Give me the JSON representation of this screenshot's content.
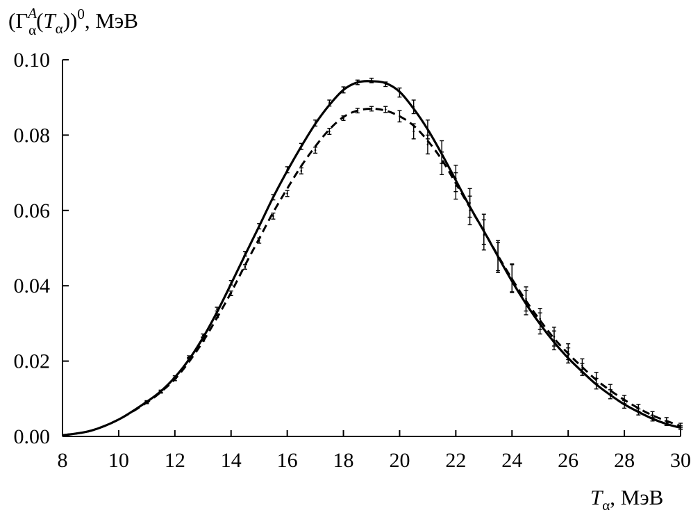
{
  "chart_data": {
    "type": "line",
    "ylabel": {
      "prefix": "(Γ",
      "sup": "A",
      "sub": "α",
      "mid": "(",
      "var": "T",
      "var_sub": "α",
      "suffix": "))",
      "power": "0",
      "unit": ", МэВ"
    },
    "xlabel": {
      "var": "T",
      "var_sub": "α",
      "unit": ", МэВ"
    },
    "xlim": [
      8,
      30
    ],
    "ylim": [
      0,
      0.1
    ],
    "xticks": [
      8,
      10,
      12,
      14,
      16,
      18,
      20,
      22,
      24,
      26,
      28,
      30
    ],
    "xtick_labels": [
      "8",
      "10",
      "12",
      "14",
      "16",
      "18",
      "20",
      "22",
      "24",
      "26",
      "28",
      "30"
    ],
    "yticks": [
      0,
      0.02,
      0.04,
      0.06,
      0.08,
      0.1
    ],
    "ytick_labels": [
      "0.00",
      "0.02",
      "0.04",
      "0.06",
      "0.08",
      "0.10"
    ],
    "grid": false,
    "series": [
      {
        "style": "solid",
        "x": [
          8.0,
          9.0,
          10.0,
          11.0,
          11.5,
          12.0,
          12.5,
          13.0,
          13.5,
          14.0,
          14.5,
          15.0,
          15.5,
          16.0,
          16.5,
          17.0,
          17.5,
          18.0,
          18.5,
          19.0,
          19.5,
          20.0,
          20.5,
          21.0,
          21.5,
          22.0,
          22.5,
          23.0,
          23.5,
          24.0,
          24.5,
          25.0,
          25.5,
          26.0,
          26.5,
          27.0,
          27.5,
          28.0,
          28.5,
          29.0,
          29.5,
          30.0
        ],
        "y": [
          0.0003,
          0.0015,
          0.0045,
          0.0092,
          0.012,
          0.0157,
          0.0204,
          0.0262,
          0.033,
          0.0405,
          0.0482,
          0.0558,
          0.0635,
          0.0705,
          0.077,
          0.083,
          0.088,
          0.092,
          0.094,
          0.0943,
          0.0938,
          0.0915,
          0.087,
          0.0815,
          0.075,
          0.068,
          0.061,
          0.0545,
          0.0478,
          0.0412,
          0.0352,
          0.0298,
          0.025,
          0.0208,
          0.0172,
          0.0138,
          0.011,
          0.0085,
          0.0065,
          0.0047,
          0.0033,
          0.0023
        ],
        "points": {
          "x": [
            11.0,
            11.5,
            12.0,
            12.5,
            13.0,
            13.5,
            14.0,
            14.5,
            15.0,
            15.5,
            16.0,
            16.5,
            17.0,
            17.5,
            18.0,
            18.5,
            19.0,
            19.5,
            20.0,
            20.5,
            21.0,
            21.5,
            22.0,
            22.5,
            23.0,
            23.5,
            24.0,
            24.5,
            25.0,
            25.5,
            26.0,
            26.5,
            27.0,
            27.5,
            28.0,
            28.5,
            29.0,
            29.5,
            30.0
          ],
          "y": [
            0.0092,
            0.012,
            0.0157,
            0.021,
            0.0268,
            0.0338,
            0.0408,
            0.0485,
            0.0558,
            0.0635,
            0.0708,
            0.077,
            0.0832,
            0.0885,
            0.092,
            0.094,
            0.0945,
            0.0935,
            0.0913,
            0.0875,
            0.0815,
            0.0755,
            0.0685,
            0.062,
            0.055,
            0.048,
            0.042,
            0.0355,
            0.03,
            0.0255,
            0.0215,
            0.0178,
            0.014,
            0.0112,
            0.0085,
            0.0065,
            0.0048,
            0.0035,
            0.0023
          ],
          "err": [
            0.0003,
            0.0003,
            0.0004,
            0.0004,
            0.0004,
            0.0005,
            0.0006,
            0.0006,
            0.0007,
            0.0007,
            0.0008,
            0.0008,
            0.0008,
            0.0008,
            0.0008,
            0.0006,
            0.0006,
            0.0006,
            0.0012,
            0.0018,
            0.0025,
            0.003,
            0.0035,
            0.0038,
            0.004,
            0.004,
            0.0038,
            0.0032,
            0.0028,
            0.0025,
            0.002,
            0.0016,
            0.0014,
            0.0012,
            0.001,
            0.0008,
            0.0007,
            0.0006,
            0.0005
          ]
        }
      },
      {
        "style": "dashed",
        "x": [
          8.0,
          9.0,
          10.0,
          11.0,
          11.5,
          12.0,
          12.5,
          13.0,
          13.5,
          14.0,
          14.5,
          15.0,
          15.5,
          16.0,
          16.5,
          17.0,
          17.5,
          18.0,
          18.5,
          19.0,
          19.5,
          20.0,
          20.5,
          21.0,
          21.5,
          22.0,
          22.5,
          23.0,
          23.5,
          24.0,
          24.5,
          25.0,
          25.5,
          26.0,
          26.5,
          27.0,
          27.5,
          28.0,
          28.5,
          29.0,
          29.5,
          30.0
        ],
        "y": [
          0.0003,
          0.0015,
          0.0045,
          0.009,
          0.0118,
          0.0152,
          0.0198,
          0.0252,
          0.0315,
          0.0382,
          0.0455,
          0.0525,
          0.0595,
          0.0658,
          0.0718,
          0.077,
          0.0815,
          0.0848,
          0.0865,
          0.087,
          0.0865,
          0.085,
          0.0825,
          0.0785,
          0.0735,
          0.0672,
          0.0608,
          0.0545,
          0.048,
          0.0418,
          0.036,
          0.0308,
          0.026,
          0.022,
          0.0184,
          0.015,
          0.0122,
          0.0097,
          0.0075,
          0.0056,
          0.0041,
          0.0028
        ],
        "points": {
          "x": [
            11.0,
            11.5,
            12.0,
            12.5,
            13.0,
            13.5,
            14.0,
            14.5,
            15.0,
            15.5,
            16.0,
            16.5,
            17.0,
            17.5,
            18.0,
            18.5,
            19.0,
            19.5,
            20.0,
            20.5,
            21.0,
            21.5,
            22.0,
            22.5,
            23.0,
            23.5,
            24.0,
            24.5,
            25.0,
            25.5,
            26.0,
            26.5,
            27.0,
            27.5,
            28.0,
            28.5,
            29.0,
            29.5,
            30.0
          ],
          "y": [
            0.009,
            0.0118,
            0.0152,
            0.0205,
            0.0258,
            0.032,
            0.038,
            0.045,
            0.052,
            0.0585,
            0.0645,
            0.0705,
            0.076,
            0.081,
            0.0845,
            0.0865,
            0.087,
            0.0868,
            0.085,
            0.081,
            0.0775,
            0.0725,
            0.0665,
            0.06,
            0.0535,
            0.0475,
            0.042,
            0.0365,
            0.0312,
            0.0265,
            0.0225,
            0.0188,
            0.0155,
            0.0125,
            0.0098,
            0.0076,
            0.0058,
            0.0043,
            0.0029
          ],
          "err": [
            0.0003,
            0.0003,
            0.0004,
            0.0004,
            0.0005,
            0.0005,
            0.0006,
            0.0006,
            0.0007,
            0.0008,
            0.0008,
            0.0008,
            0.0008,
            0.0008,
            0.0006,
            0.0006,
            0.0006,
            0.0008,
            0.0015,
            0.002,
            0.0025,
            0.003,
            0.0035,
            0.0038,
            0.004,
            0.004,
            0.0036,
            0.0032,
            0.0028,
            0.0025,
            0.0021,
            0.0018,
            0.0015,
            0.0013,
            0.0011,
            0.0009,
            0.0008,
            0.0007,
            0.0006
          ]
        }
      }
    ]
  }
}
